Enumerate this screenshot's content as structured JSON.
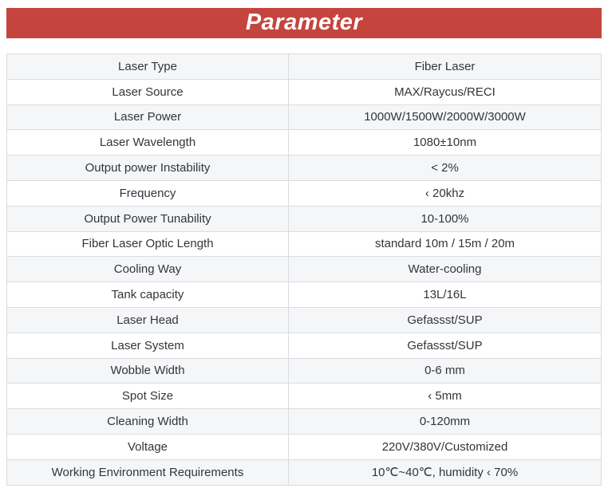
{
  "banner": {
    "title": "Parameter",
    "bg_color": "#c5443e",
    "text_color": "#ffffff"
  },
  "table": {
    "stripe_color": "#f5f6f8",
    "border_color": "#d9dcdf",
    "rows": [
      {
        "label": "Laser Type",
        "value": "Fiber Laser"
      },
      {
        "label": "Laser Source",
        "value": "MAX/Raycus/RECI"
      },
      {
        "label": "Laser Power",
        "value": "1000W/1500W/2000W/3000W"
      },
      {
        "label": "Laser Wavelength",
        "value": "1080±10nm"
      },
      {
        "label": "Output power Instability",
        "value": "< 2%"
      },
      {
        "label": "Frequency",
        "value": "‹ 20khz"
      },
      {
        "label": "Output Power Tunability",
        "value": "10-100%"
      },
      {
        "label": "Fiber Laser Optic Length",
        "value": "standard 10m / 15m / 20m"
      },
      {
        "label": "Cooling Way",
        "value": "Water-cooling"
      },
      {
        "label": "Tank capacity",
        "value": "13L/16L"
      },
      {
        "label": "Laser Head",
        "value": "Gefassst/SUP"
      },
      {
        "label": "Laser System",
        "value": "Gefassst/SUP"
      },
      {
        "label": "Wobble Width",
        "value": "0-6 mm"
      },
      {
        "label": "Spot Size",
        "value": "‹ 5mm"
      },
      {
        "label": "Cleaning Width",
        "value": "0-120mm"
      },
      {
        "label": "Voltage",
        "value": "220V/380V/Customized"
      },
      {
        "label": "Working Environment Requirements",
        "value": "10℃~40℃, humidity ‹ 70%"
      }
    ]
  }
}
